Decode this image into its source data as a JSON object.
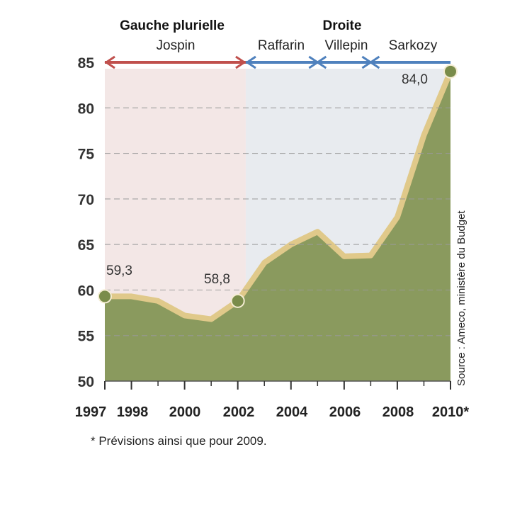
{
  "headers": {
    "left_group": "Gauche plurielle",
    "left_names": [
      "Jospin"
    ],
    "right_group": "Droite",
    "right_names": [
      "Raffarin",
      "Villepin",
      "Sarkozy"
    ]
  },
  "source": "Source : Ameco, ministère du Budget",
  "footnote": "* Prévisions ainsi que pour 2009.",
  "colors": {
    "area_fill": "#8a9a5e",
    "line": "#e0c98a",
    "left_band": "#f3e7e6",
    "right_band": "#e8ebef",
    "left_arrow": "#c0504d",
    "right_arrow": "#4f81bd",
    "marker": "#7a8c4a"
  },
  "chart_data": {
    "type": "area",
    "title": "",
    "xlabel": "",
    "ylabel": "",
    "ylim": [
      50,
      85
    ],
    "yticks": [
      "50",
      "55",
      "60",
      "65",
      "70",
      "75",
      "80",
      "85"
    ],
    "xticks": [
      "1997",
      "1998",
      "2000",
      "2002",
      "2004",
      "2006",
      "2008",
      "2010*"
    ],
    "grid": "dashed horizontal",
    "series": [
      {
        "x": [
          1997,
          1998,
          1999,
          2000,
          2001,
          2002,
          2003,
          2004,
          2005,
          2006,
          2007,
          2008,
          2009,
          2010
        ],
        "values": [
          59.3,
          59.3,
          58.8,
          57.2,
          56.8,
          58.8,
          63.0,
          65.0,
          66.4,
          63.7,
          63.8,
          68.0,
          77.0,
          84.0
        ]
      }
    ],
    "annotations": [
      {
        "x": 1997,
        "y": 59.3,
        "text": "59,3"
      },
      {
        "x": 2002,
        "y": 58.8,
        "text": "58,8"
      },
      {
        "x": 2010,
        "y": 84.0,
        "text": "84,0"
      }
    ],
    "periods": [
      {
        "from": 1997,
        "to": 2002.3,
        "name": "Jospin"
      },
      {
        "from": 2002.3,
        "to": 2005,
        "name": "Raffarin"
      },
      {
        "from": 2005,
        "to": 2007,
        "name": "Villepin"
      },
      {
        "from": 2007,
        "to": 2010,
        "name": "Sarkozy"
      }
    ]
  }
}
